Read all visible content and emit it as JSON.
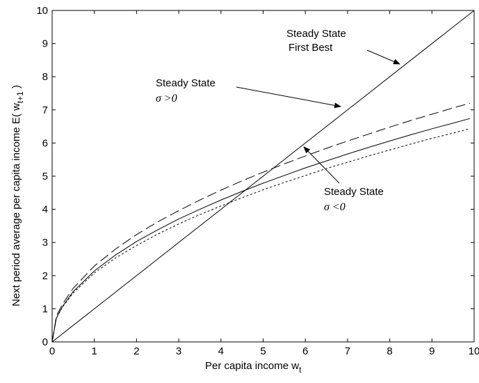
{
  "chart_data": {
    "type": "line",
    "xlabel": "Per capita income w",
    "xlabel_sub": "t",
    "ylabel": "Next period average per capita income E( w",
    "ylabel_sub": "t+1",
    "ylabel_close": " )",
    "xlim": [
      0,
      10
    ],
    "ylim": [
      0,
      10
    ],
    "xticks": [
      0,
      1,
      2,
      3,
      4,
      5,
      6,
      7,
      8,
      9,
      10
    ],
    "yticks": [
      0,
      1,
      2,
      3,
      4,
      5,
      6,
      7,
      8,
      9,
      10
    ],
    "grid": false,
    "series": [
      {
        "style": "solid",
        "x": [
          0,
          10
        ],
        "y": [
          0,
          10
        ]
      },
      {
        "style": "dashed-long",
        "x": [
          0,
          0.1,
          0.25,
          0.5,
          1,
          1.5,
          2,
          2.5,
          3,
          3.5,
          4,
          4.5,
          5,
          5.5,
          6,
          6.5,
          7,
          7.5,
          8,
          8.5,
          9,
          9.5,
          9.9
        ],
        "y": [
          0,
          0.78,
          1.15,
          1.62,
          2.29,
          2.8,
          3.24,
          3.62,
          3.96,
          4.28,
          4.58,
          4.86,
          5.12,
          5.37,
          5.61,
          5.84,
          6.06,
          6.27,
          6.48,
          6.68,
          6.87,
          7.06,
          7.2
        ]
      },
      {
        "style": "solid",
        "x": [
          0,
          0.1,
          0.25,
          0.5,
          1,
          1.5,
          2,
          2.5,
          3,
          3.5,
          4,
          4.5,
          5,
          5.5,
          6,
          6.5,
          7,
          7.5,
          8,
          8.5,
          9,
          9.5,
          9.9
        ],
        "y": [
          0,
          0.72,
          1.08,
          1.52,
          2.14,
          2.62,
          3.03,
          3.38,
          3.71,
          4.0,
          4.28,
          4.54,
          4.79,
          5.02,
          5.25,
          5.46,
          5.67,
          5.87,
          6.06,
          6.25,
          6.43,
          6.6,
          6.74
        ]
      },
      {
        "style": "dotted",
        "x": [
          0,
          0.1,
          0.25,
          0.5,
          1,
          1.5,
          2,
          2.5,
          3,
          3.5,
          4,
          4.5,
          5,
          5.5,
          6,
          6.5,
          7,
          7.5,
          8,
          8.5,
          9,
          9.5,
          9.9
        ],
        "y": [
          0,
          0.72,
          1.06,
          1.48,
          2.08,
          2.53,
          2.91,
          3.25,
          3.56,
          3.84,
          4.1,
          4.35,
          4.59,
          4.81,
          5.02,
          5.23,
          5.42,
          5.61,
          5.79,
          5.97,
          6.14,
          6.3,
          6.43
        ]
      }
    ],
    "annotations": [
      {
        "line1": "Steady State",
        "line2": "First Best",
        "line2_italic": false
      },
      {
        "line1": "Steady State",
        "line2": "σ >0",
        "line2_italic": true
      },
      {
        "line1": "Steady State",
        "line2": "σ <0",
        "line2_italic": true
      }
    ]
  }
}
